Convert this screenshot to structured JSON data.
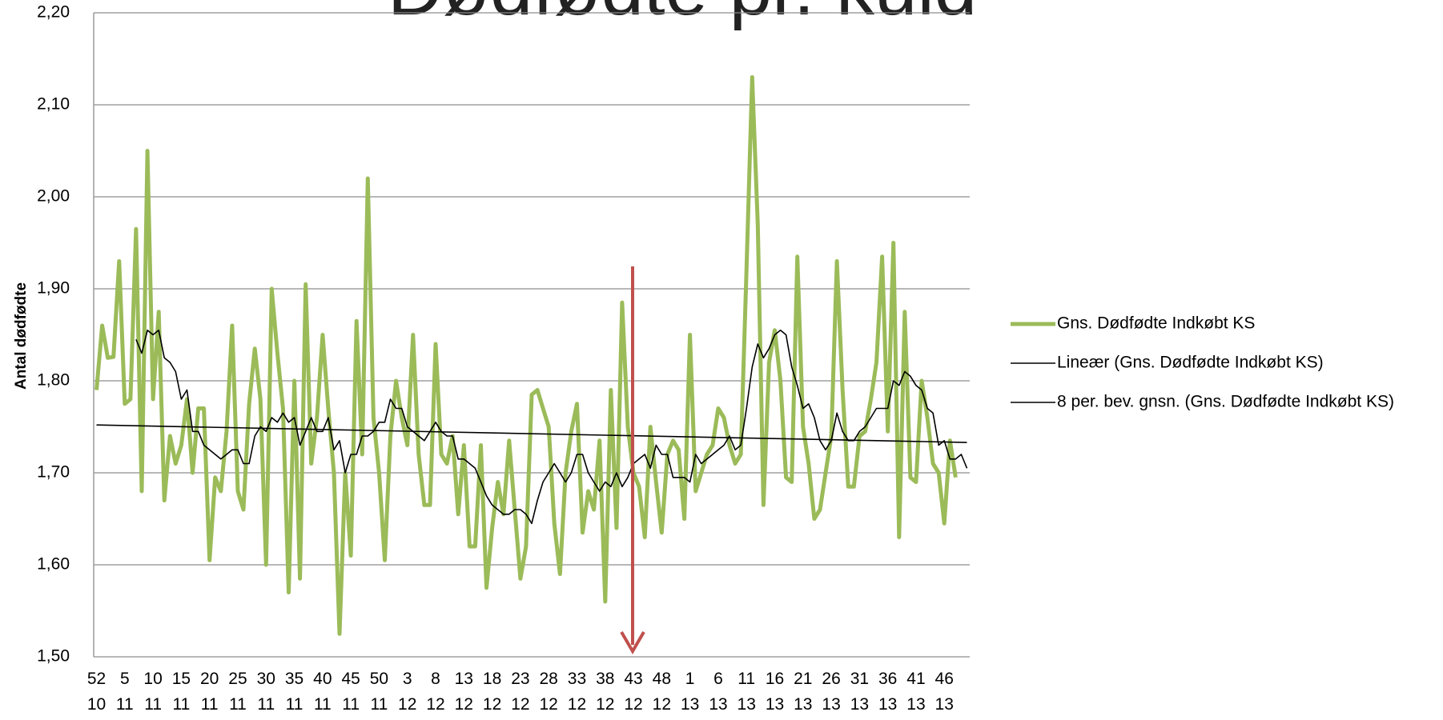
{
  "chart_data": {
    "type": "line",
    "title": "Dødfødte pr. kuld",
    "y_label": "Antal dødfødte",
    "ylim": [
      1.5,
      2.2
    ],
    "yticks": [
      {
        "value": 1.5,
        "label": "1,50"
      },
      {
        "value": 1.6,
        "label": "1,60"
      },
      {
        "value": 1.7,
        "label": "1,70"
      },
      {
        "value": 1.8,
        "label": "1,80"
      },
      {
        "value": 1.9,
        "label": "1,90"
      },
      {
        "value": 2.0,
        "label": "2,00"
      },
      {
        "value": 2.1,
        "label": "2,10"
      },
      {
        "value": 2.2,
        "label": "2,20"
      }
    ],
    "grid": true,
    "legend": "right",
    "categories": [
      [
        "52",
        "10"
      ],
      null,
      null,
      null,
      null,
      [
        "5",
        "11"
      ],
      null,
      null,
      null,
      null,
      [
        "10",
        "11"
      ],
      null,
      null,
      null,
      null,
      [
        "15",
        "11"
      ],
      null,
      null,
      null,
      null,
      [
        "20",
        "11"
      ],
      null,
      null,
      null,
      null,
      [
        "25",
        "11"
      ],
      null,
      null,
      null,
      null,
      [
        "30",
        "11"
      ],
      null,
      null,
      null,
      null,
      [
        "35",
        "11"
      ],
      null,
      null,
      null,
      null,
      [
        "40",
        "11"
      ],
      null,
      null,
      null,
      null,
      [
        "45",
        "11"
      ],
      null,
      null,
      null,
      null,
      [
        "50",
        "11"
      ],
      null,
      null,
      null,
      null,
      [
        "3",
        "12"
      ],
      null,
      null,
      null,
      null,
      [
        "8",
        "12"
      ],
      null,
      null,
      null,
      null,
      [
        "13",
        "12"
      ],
      null,
      null,
      null,
      null,
      [
        "18",
        "12"
      ],
      null,
      null,
      null,
      null,
      [
        "23",
        "12"
      ],
      null,
      null,
      null,
      null,
      [
        "28",
        "12"
      ],
      null,
      null,
      null,
      null,
      [
        "33",
        "12"
      ],
      null,
      null,
      null,
      null,
      [
        "38",
        "12"
      ],
      null,
      null,
      null,
      null,
      [
        "43",
        "12"
      ],
      null,
      null,
      null,
      null,
      [
        "48",
        "12"
      ],
      null,
      null,
      null,
      null,
      [
        "1",
        "13"
      ],
      null,
      null,
      null,
      null,
      [
        "6",
        "13"
      ],
      null,
      null,
      null,
      null,
      [
        "11",
        "13"
      ],
      null,
      null,
      null,
      null,
      [
        "16",
        "13"
      ],
      null,
      null,
      null,
      null,
      [
        "21",
        "13"
      ],
      null,
      null,
      null,
      null,
      [
        "26",
        "13"
      ],
      null,
      null,
      null,
      null,
      [
        "31",
        "13"
      ],
      null,
      null,
      null,
      null,
      [
        "36",
        "13"
      ],
      null,
      null,
      null,
      null,
      [
        "41",
        "13"
      ],
      null,
      null,
      null,
      null,
      [
        "46",
        "13"
      ],
      null,
      null,
      null,
      null
    ],
    "series": [
      {
        "name": "Gns. Dødfødte Indkøbt KS",
        "color": "#9bbb59",
        "values": [
          1.79,
          1.86,
          1.825,
          1.826,
          1.93,
          1.775,
          1.78,
          1.965,
          1.68,
          2.05,
          1.78,
          1.875,
          1.67,
          1.74,
          1.71,
          1.73,
          1.78,
          1.7,
          1.77,
          1.77,
          1.605,
          1.695,
          1.68,
          1.745,
          1.86,
          1.68,
          1.66,
          1.775,
          1.835,
          1.78,
          1.6,
          1.9,
          1.83,
          1.77,
          1.57,
          1.8,
          1.585,
          1.905,
          1.71,
          1.76,
          1.85,
          1.77,
          1.7,
          1.525,
          1.7,
          1.61,
          1.865,
          1.72,
          2.02,
          1.76,
          1.7,
          1.605,
          1.74,
          1.8,
          1.76,
          1.73,
          1.85,
          1.72,
          1.665,
          1.665,
          1.84,
          1.72,
          1.71,
          1.74,
          1.655,
          1.73,
          1.62,
          1.62,
          1.73,
          1.575,
          1.64,
          1.69,
          1.655,
          1.735,
          1.66,
          1.585,
          1.62,
          1.785,
          1.79,
          1.77,
          1.75,
          1.645,
          1.59,
          1.7,
          1.745,
          1.775,
          1.635,
          1.68,
          1.66,
          1.735,
          1.56,
          1.79,
          1.64,
          1.885,
          1.75,
          1.7,
          1.685,
          1.63,
          1.75,
          1.69,
          1.635,
          1.72,
          1.735,
          1.725,
          1.65,
          1.85,
          1.68,
          1.7,
          1.72,
          1.73,
          1.77,
          1.76,
          1.73,
          1.71,
          1.72,
          1.92,
          2.13,
          1.97,
          1.665,
          1.82,
          1.855,
          1.8,
          1.695,
          1.69,
          1.935,
          1.75,
          1.71,
          1.65,
          1.66,
          1.7,
          1.74,
          1.93,
          1.79,
          1.685,
          1.685,
          1.74,
          1.745,
          1.78,
          1.82,
          1.935,
          1.745,
          1.95,
          1.63,
          1.875,
          1.695,
          1.69,
          1.8,
          1.76,
          1.71,
          1.7,
          1.645,
          1.735,
          1.695,
          null,
          null
        ]
      },
      {
        "name": "8 per. bev. gnsn. (Gns. Dødfødte Indkøbt KS)",
        "color": "#000000",
        "values": [
          null,
          null,
          null,
          null,
          null,
          null,
          null,
          1.845,
          1.83,
          1.855,
          1.85,
          1.855,
          1.825,
          1.82,
          1.81,
          1.78,
          1.79,
          1.745,
          1.745,
          1.73,
          1.725,
          1.72,
          1.715,
          1.72,
          1.725,
          1.725,
          1.71,
          1.71,
          1.74,
          1.75,
          1.745,
          1.76,
          1.755,
          1.765,
          1.755,
          1.76,
          1.73,
          1.745,
          1.76,
          1.745,
          1.745,
          1.76,
          1.725,
          1.735,
          1.7,
          1.72,
          1.72,
          1.74,
          1.74,
          1.745,
          1.755,
          1.755,
          1.78,
          1.77,
          1.77,
          1.75,
          1.745,
          1.74,
          1.735,
          1.745,
          1.755,
          1.745,
          1.74,
          1.74,
          1.715,
          1.715,
          1.71,
          1.705,
          1.69,
          1.675,
          1.665,
          1.66,
          1.655,
          1.655,
          1.66,
          1.66,
          1.655,
          1.645,
          1.67,
          1.69,
          1.7,
          1.71,
          1.7,
          1.69,
          1.7,
          1.72,
          1.72,
          1.7,
          1.69,
          1.68,
          1.69,
          1.685,
          1.7,
          1.685,
          1.695,
          1.71,
          1.715,
          1.72,
          1.705,
          1.73,
          1.72,
          1.72,
          1.695,
          1.695,
          1.695,
          1.69,
          1.72,
          1.71,
          1.715,
          1.72,
          1.725,
          1.73,
          1.74,
          1.725,
          1.73,
          1.77,
          1.815,
          1.84,
          1.825,
          1.835,
          1.85,
          1.855,
          1.85,
          1.815,
          1.795,
          1.77,
          1.775,
          1.76,
          1.735,
          1.725,
          1.735,
          1.765,
          1.745,
          1.735,
          1.735,
          1.745,
          1.75,
          1.76,
          1.77,
          1.77,
          1.77,
          1.8,
          1.795,
          1.81,
          1.805,
          1.795,
          1.79,
          1.77,
          1.765,
          1.73,
          1.735,
          1.715,
          1.715,
          1.72,
          1.705
        ]
      }
    ],
    "trendline": {
      "name": "Lineær (Gns. Dødfødte Indkøbt KS)",
      "color": "#000000",
      "values": [
        1.752,
        1.733
      ]
    }
  }
}
